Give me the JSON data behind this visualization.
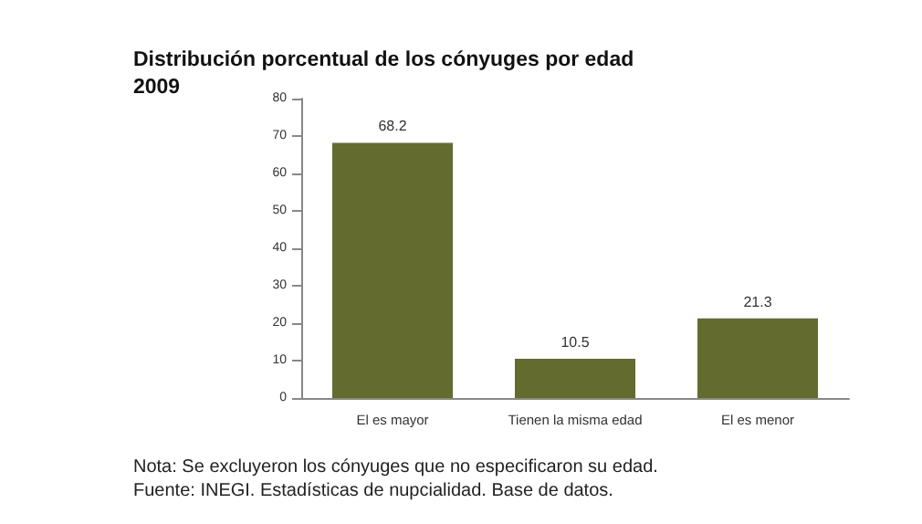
{
  "chart_data": {
    "type": "bar",
    "title": "Distribución porcentual de los cónyuges por edad",
    "subtitle": "2009",
    "categories": [
      "El es mayor",
      "Tienen la misma edad",
      "El es menor"
    ],
    "values": [
      68.2,
      10.5,
      21.3
    ],
    "color": "#636b2f",
    "ylim": [
      0,
      80
    ],
    "yticks": [
      0,
      10,
      20,
      30,
      40,
      50,
      60,
      70,
      80
    ],
    "grid": false,
    "data_labels": true,
    "annotations": [
      "Nota: Se excluyeron los cónyuges que no especificaron su edad.",
      "Fuente: INEGI. Estadísticas de nupcialidad. Base de datos."
    ]
  }
}
